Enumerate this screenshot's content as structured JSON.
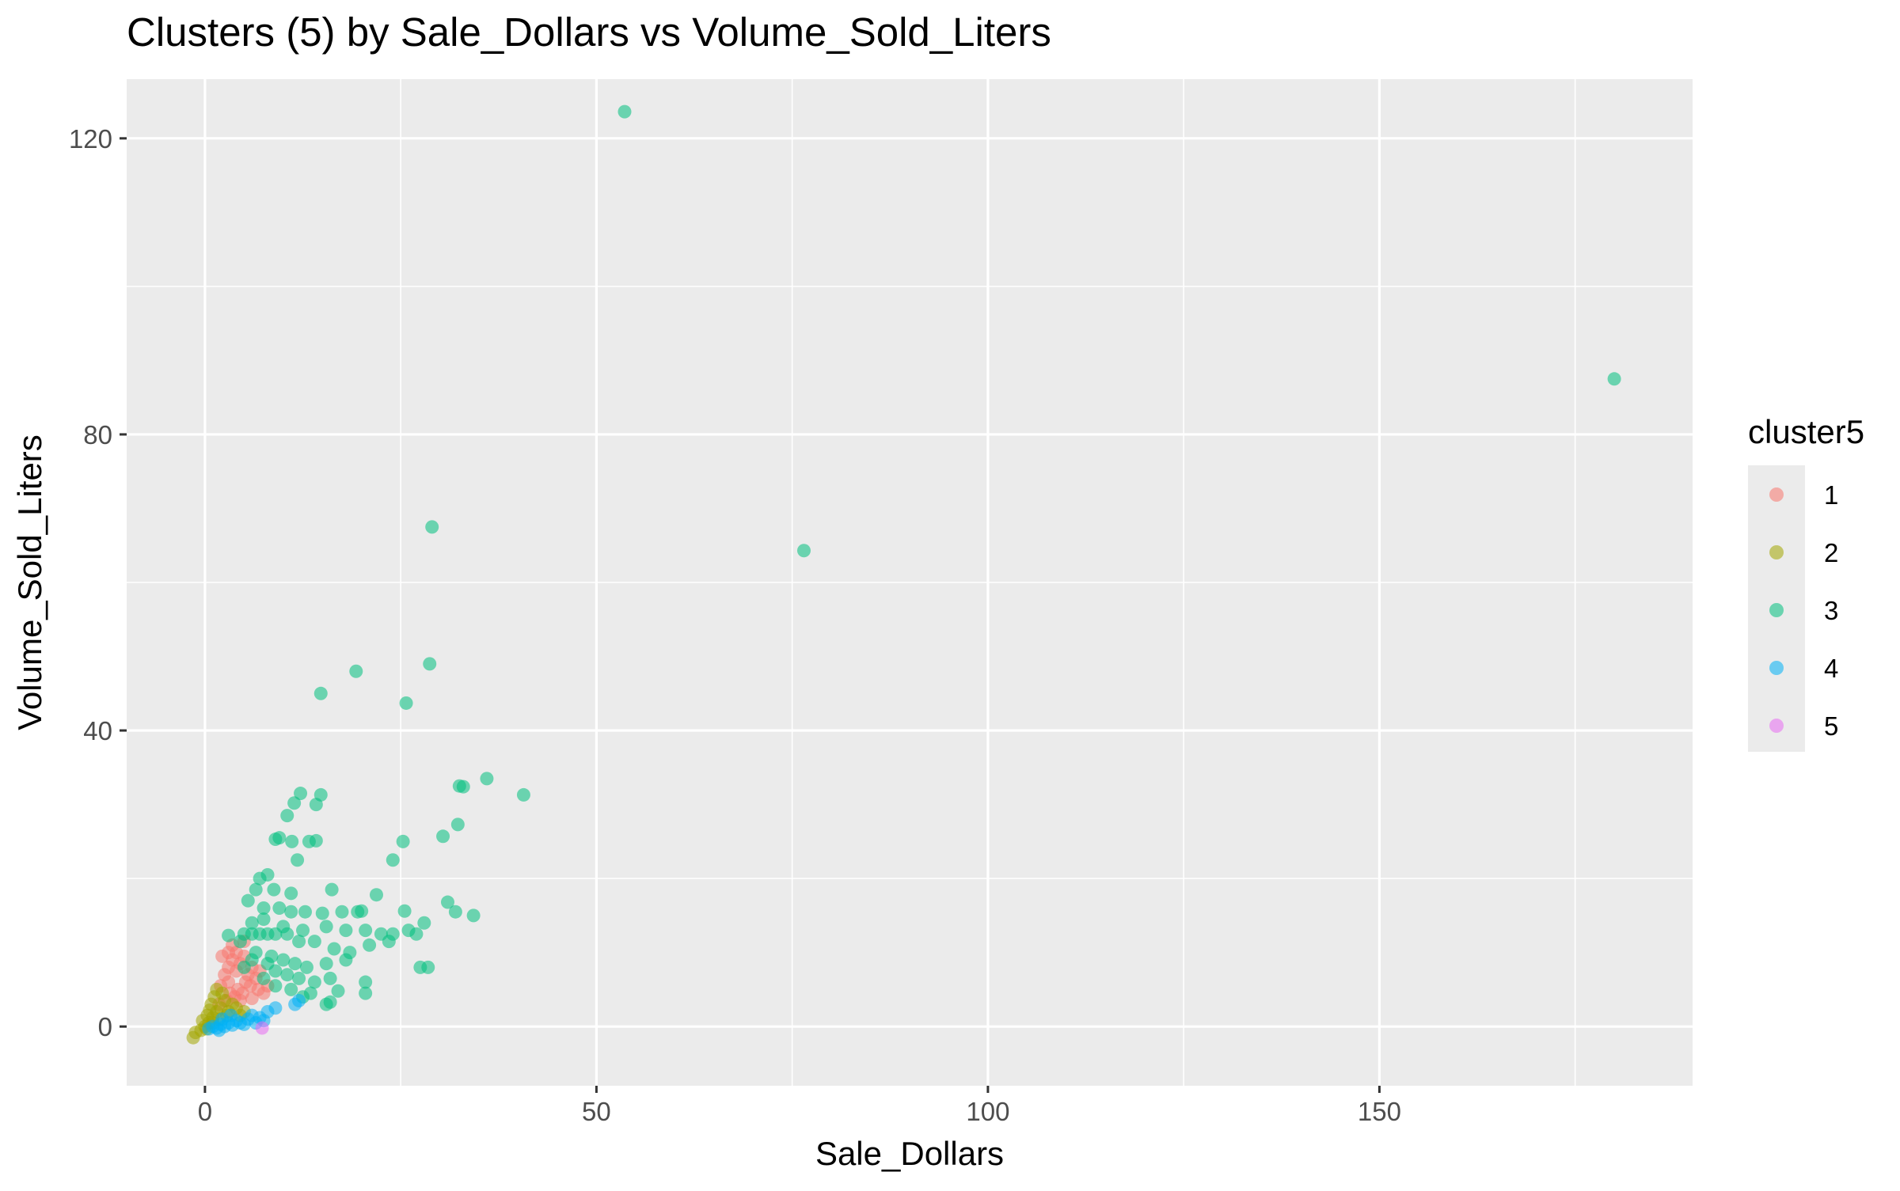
{
  "chart_data": {
    "type": "scatter",
    "title": "Clusters (5) by Sale_Dollars vs Volume_Sold_Liters",
    "xlabel": "Sale_Dollars",
    "ylabel": "Volume_Sold_Liters",
    "xlim": [
      -10,
      190
    ],
    "ylim": [
      -8,
      128
    ],
    "x_ticks": [
      0,
      50,
      100,
      150
    ],
    "y_ticks": [
      0,
      40,
      80,
      120
    ],
    "grid": true,
    "legend": {
      "title": "cluster5",
      "placement": "right"
    },
    "series": [
      {
        "name": "1",
        "color": "#F8766D",
        "points": [
          [
            2.0,
            5.5
          ],
          [
            2.5,
            7.0
          ],
          [
            3.0,
            8.0
          ],
          [
            3.5,
            9.0
          ],
          [
            3.0,
            6.0
          ],
          [
            4.0,
            7.5
          ],
          [
            4.5,
            8.5
          ],
          [
            5.0,
            9.5
          ],
          [
            5.5,
            7.0
          ],
          [
            6.0,
            8.0
          ],
          [
            3.2,
            4.5
          ],
          [
            4.2,
            5.0
          ],
          [
            5.2,
            6.0
          ],
          [
            6.5,
            6.5
          ],
          [
            7.0,
            7.5
          ],
          [
            2.8,
            3.5
          ],
          [
            3.8,
            4.0
          ],
          [
            4.8,
            4.5
          ],
          [
            5.8,
            5.5
          ],
          [
            6.8,
            5.0
          ],
          [
            4.0,
            10.0
          ],
          [
            3.5,
            11.0
          ],
          [
            5.0,
            11.5
          ],
          [
            2.2,
            9.5
          ],
          [
            7.5,
            4.5
          ],
          [
            8.0,
            5.5
          ],
          [
            1.8,
            3.0
          ],
          [
            4.5,
            3.5
          ],
          [
            6.0,
            3.8
          ],
          [
            3.0,
            10.0
          ]
        ]
      },
      {
        "name": "2",
        "color": "#A3A500",
        "points": [
          [
            -1.5,
            -1.5
          ],
          [
            -1.2,
            -0.8
          ],
          [
            -0.5,
            -0.5
          ],
          [
            0.0,
            0.0
          ],
          [
            0.5,
            0.5
          ],
          [
            1.0,
            1.2
          ],
          [
            1.5,
            2.0
          ],
          [
            2.0,
            2.5
          ],
          [
            0.8,
            3.0
          ],
          [
            1.2,
            4.0
          ],
          [
            2.5,
            3.5
          ],
          [
            3.0,
            2.0
          ],
          [
            1.8,
            1.0
          ],
          [
            0.3,
            1.5
          ],
          [
            2.2,
            4.5
          ],
          [
            3.5,
            3.0
          ],
          [
            4.0,
            2.5
          ],
          [
            5.0,
            2.0
          ],
          [
            0.6,
            2.2
          ],
          [
            1.0,
            0.5
          ],
          [
            2.8,
            1.5
          ],
          [
            1.5,
            5.0
          ],
          [
            -0.3,
            0.8
          ],
          [
            0.2,
            -0.3
          ],
          [
            4.5,
            1.5
          ]
        ]
      },
      {
        "name": "3",
        "color": "#00BF7D",
        "points": [
          [
            53.6,
            123.6
          ],
          [
            180.0,
            87.5
          ],
          [
            29.0,
            67.5
          ],
          [
            76.5,
            64.3
          ],
          [
            28.7,
            49.0
          ],
          [
            19.3,
            48.0
          ],
          [
            14.8,
            45.0
          ],
          [
            25.7,
            43.7
          ],
          [
            36.0,
            33.5
          ],
          [
            32.5,
            32.5
          ],
          [
            33.0,
            32.4
          ],
          [
            40.7,
            31.3
          ],
          [
            12.2,
            31.5
          ],
          [
            14.8,
            31.3
          ],
          [
            11.4,
            30.2
          ],
          [
            14.2,
            30.0
          ],
          [
            32.3,
            27.3
          ],
          [
            9.5,
            25.5
          ],
          [
            9.0,
            25.3
          ],
          [
            13.3,
            25.0
          ],
          [
            14.2,
            25.1
          ],
          [
            30.4,
            25.7
          ],
          [
            25.3,
            25.0
          ],
          [
            11.1,
            25.0
          ],
          [
            10.5,
            28.5
          ],
          [
            24.0,
            22.5
          ],
          [
            11.8,
            22.5
          ],
          [
            16.2,
            18.5
          ],
          [
            7.0,
            20.0
          ],
          [
            8.0,
            20.5
          ],
          [
            6.5,
            18.5
          ],
          [
            11.0,
            18.0
          ],
          [
            8.8,
            18.5
          ],
          [
            21.9,
            17.8
          ],
          [
            5.5,
            17.0
          ],
          [
            31.0,
            16.8
          ],
          [
            7.5,
            16.0
          ],
          [
            9.5,
            16.0
          ],
          [
            11.0,
            15.5
          ],
          [
            12.8,
            15.5
          ],
          [
            15.0,
            15.3
          ],
          [
            17.5,
            15.5
          ],
          [
            19.5,
            15.5
          ],
          [
            20.0,
            15.6
          ],
          [
            25.5,
            15.6
          ],
          [
            32.0,
            15.5
          ],
          [
            34.3,
            15.0
          ],
          [
            6.0,
            14.0
          ],
          [
            7.5,
            14.5
          ],
          [
            10.0,
            13.5
          ],
          [
            12.5,
            13.0
          ],
          [
            15.5,
            13.5
          ],
          [
            18.0,
            13.0
          ],
          [
            20.5,
            13.0
          ],
          [
            22.5,
            12.5
          ],
          [
            27.0,
            12.5
          ],
          [
            28.0,
            14.0
          ],
          [
            26.0,
            13.0
          ],
          [
            24.0,
            12.5
          ],
          [
            5.0,
            12.5
          ],
          [
            6.0,
            12.5
          ],
          [
            7.0,
            12.5
          ],
          [
            8.0,
            12.5
          ],
          [
            9.0,
            12.5
          ],
          [
            10.5,
            12.5
          ],
          [
            3.0,
            12.3
          ],
          [
            4.5,
            11.5
          ],
          [
            12.0,
            11.5
          ],
          [
            14.0,
            11.5
          ],
          [
            16.5,
            10.5
          ],
          [
            18.5,
            10.0
          ],
          [
            21.0,
            11.0
          ],
          [
            23.5,
            11.5
          ],
          [
            6.5,
            10.0
          ],
          [
            8.5,
            9.5
          ],
          [
            10.0,
            9.0
          ],
          [
            11.5,
            8.5
          ],
          [
            13.0,
            8.0
          ],
          [
            15.5,
            8.5
          ],
          [
            18.0,
            9.0
          ],
          [
            9.0,
            7.5
          ],
          [
            10.5,
            7.0
          ],
          [
            12.0,
            6.5
          ],
          [
            14.0,
            6.0
          ],
          [
            16.0,
            6.5
          ],
          [
            20.5,
            6.0
          ],
          [
            27.5,
            8.0
          ],
          [
            28.5,
            8.0
          ],
          [
            7.5,
            6.5
          ],
          [
            9.0,
            5.5
          ],
          [
            11.0,
            5.0
          ],
          [
            13.5,
            4.5
          ],
          [
            17.0,
            4.8
          ],
          [
            20.5,
            4.5
          ],
          [
            12.5,
            4.0
          ],
          [
            15.5,
            3.0
          ],
          [
            16.0,
            3.3
          ],
          [
            8.0,
            8.5
          ],
          [
            6.0,
            9.0
          ],
          [
            5.0,
            8.0
          ]
        ]
      },
      {
        "name": "4",
        "color": "#00B0F6",
        "points": [
          [
            0.5,
            -0.3
          ],
          [
            1.0,
            0.0
          ],
          [
            1.5,
            -0.2
          ],
          [
            2.0,
            0.3
          ],
          [
            2.5,
            0.0
          ],
          [
            3.0,
            0.5
          ],
          [
            3.5,
            0.2
          ],
          [
            4.0,
            0.8
          ],
          [
            4.5,
            0.5
          ],
          [
            5.0,
            0.3
          ],
          [
            5.5,
            1.0
          ],
          [
            6.0,
            1.5
          ],
          [
            7.0,
            1.2
          ],
          [
            8.0,
            2.0
          ],
          [
            9.0,
            2.5
          ],
          [
            11.5,
            3.0
          ],
          [
            12.0,
            3.5
          ],
          [
            2.2,
            1.0
          ],
          [
            3.3,
            1.5
          ],
          [
            6.5,
            0.5
          ],
          [
            7.5,
            0.8
          ],
          [
            1.8,
            -0.5
          ]
        ]
      },
      {
        "name": "5",
        "color": "#E76BF3",
        "points": [
          [
            7.3,
            -0.2
          ]
        ]
      }
    ]
  }
}
